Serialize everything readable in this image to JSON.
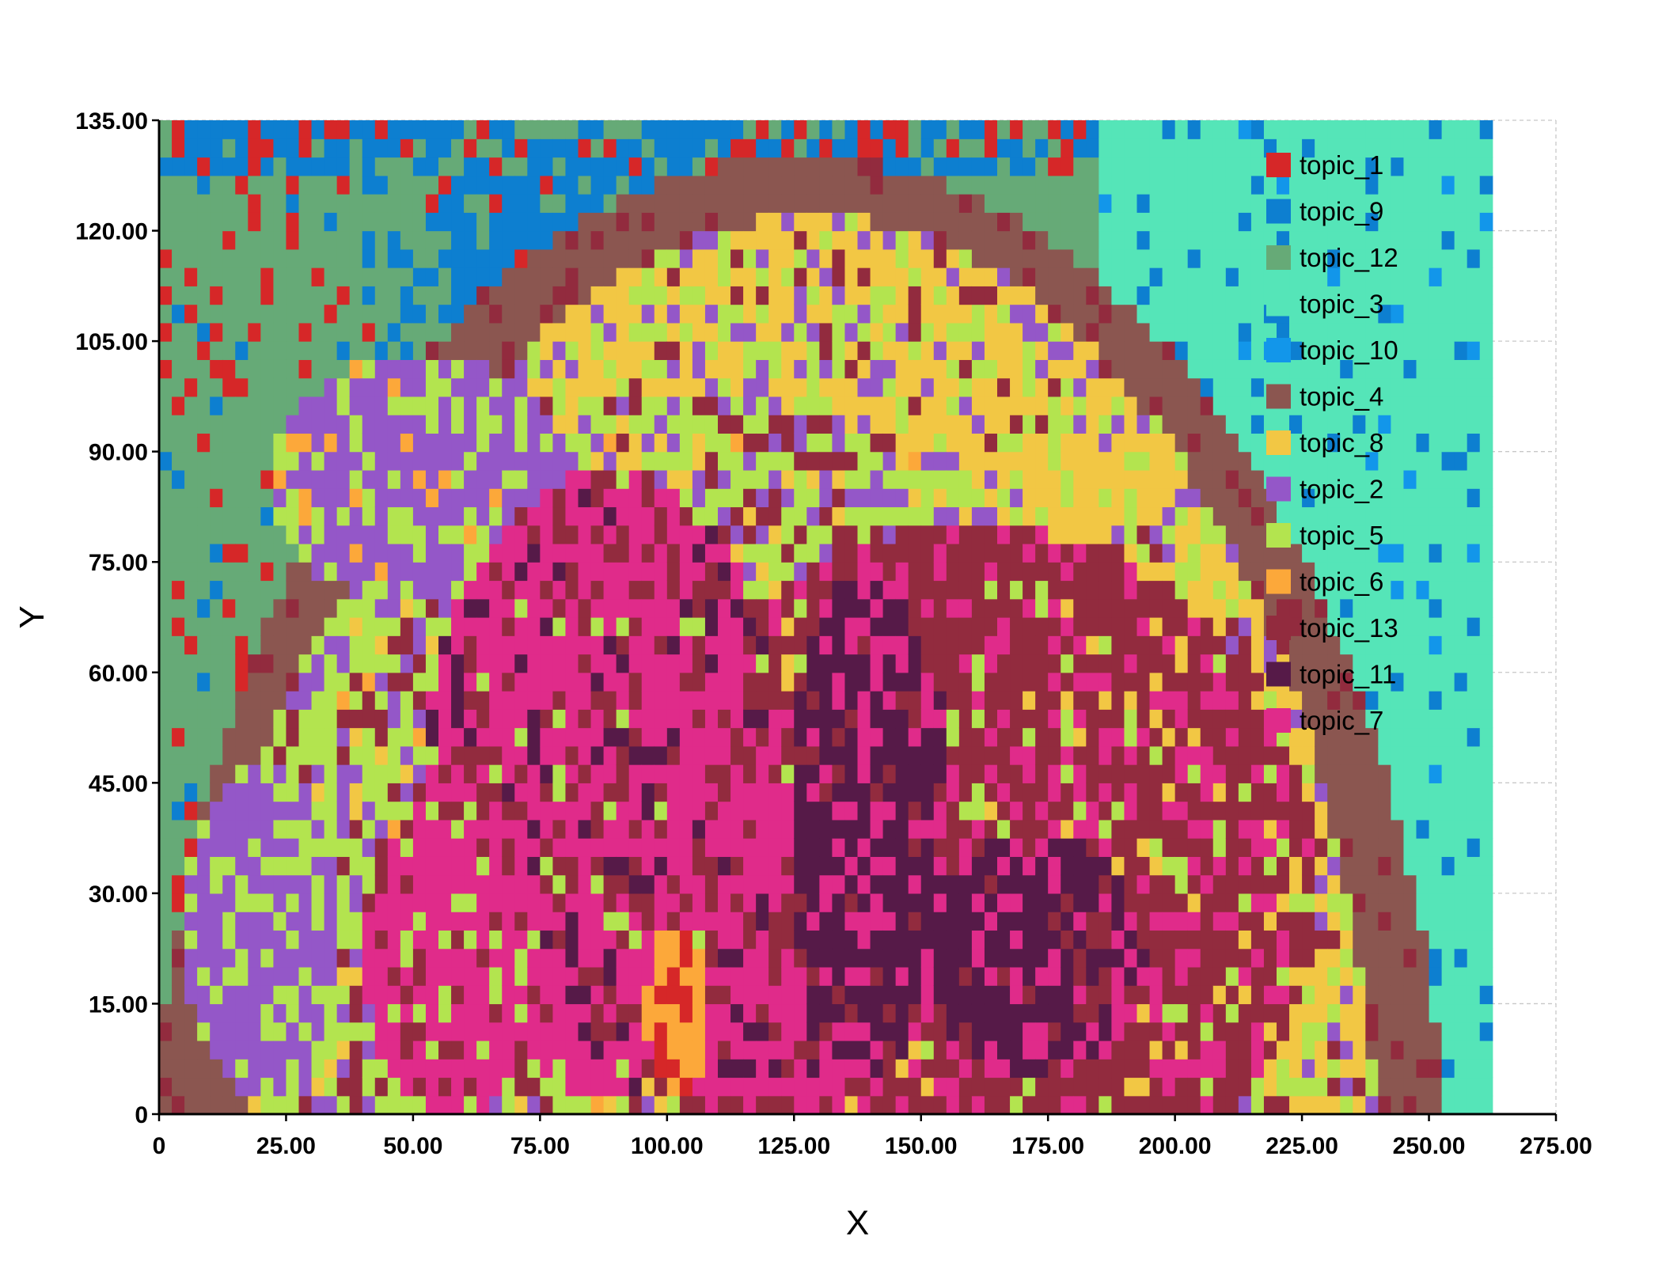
{
  "chart_data": {
    "type": "heatmap",
    "title": "",
    "xlabel": "X",
    "ylabel": "Y",
    "xlim": [
      0,
      275
    ],
    "ylim": [
      0,
      135
    ],
    "grid": true,
    "legend_position": "top-right",
    "cell_size": 2.5,
    "data_extent": {
      "x": [
        0,
        262.5
      ],
      "y": [
        0,
        135
      ]
    },
    "x_ticks": [
      "0",
      "25.00",
      "50.00",
      "75.00",
      "100.00",
      "125.00",
      "150.00",
      "175.00",
      "200.00",
      "225.00",
      "250.00",
      "275.00"
    ],
    "y_ticks": [
      "0",
      "15.00",
      "30.00",
      "45.00",
      "60.00",
      "75.00",
      "90.00",
      "105.00",
      "120.00",
      "135.00"
    ],
    "x_tick_values": [
      0,
      25,
      50,
      75,
      100,
      125,
      150,
      175,
      200,
      225,
      250,
      275
    ],
    "y_tick_values": [
      0,
      15,
      30,
      45,
      60,
      75,
      90,
      105,
      120,
      135
    ],
    "series": [
      {
        "name": "topic_1",
        "color": "#d62728"
      },
      {
        "name": "topic_9",
        "color": "#0d7fd0"
      },
      {
        "name": "topic_12",
        "color": "#66aa77"
      },
      {
        "name": "topic_3",
        "color": "#55e5b8"
      },
      {
        "name": "topic_10",
        "color": "#1296ea"
      },
      {
        "name": "topic_4",
        "color": "#8b5650"
      },
      {
        "name": "topic_8",
        "color": "#f2c744"
      },
      {
        "name": "topic_2",
        "color": "#9457c8"
      },
      {
        "name": "topic_5",
        "color": "#b3e44f"
      },
      {
        "name": "topic_6",
        "color": "#fca83a"
      },
      {
        "name": "topic_13",
        "color": "#922b3e"
      },
      {
        "name": "topic_11",
        "color": "#561a48"
      },
      {
        "name": "topic_7",
        "color": "#e02b8a"
      }
    ],
    "regions": [
      {
        "topic": "topic_12",
        "shape": "rect",
        "x0": 0,
        "x1": 40,
        "y0": 0,
        "y1": 135,
        "noise": [
          [
            "topic_1",
            0.14
          ],
          [
            "topic_9",
            0.04
          ]
        ]
      },
      {
        "topic": "topic_12",
        "shape": "rect",
        "x0": 40,
        "x1": 100,
        "y0": 100,
        "y1": 135,
        "noise": [
          [
            "topic_9",
            0.28
          ],
          [
            "topic_1",
            0.08
          ]
        ]
      },
      {
        "topic": "topic_9",
        "shape": "rect",
        "x0": 58,
        "x1": 125,
        "y0": 100,
        "y1": 135,
        "noise": [
          [
            "topic_12",
            0.22
          ],
          [
            "topic_1",
            0.06
          ]
        ]
      },
      {
        "topic": "topic_9",
        "shape": "rect",
        "x0": 0,
        "x1": 262.5,
        "y0": 128,
        "y1": 135,
        "noise": [
          [
            "topic_1",
            0.22
          ],
          [
            "topic_12",
            0.22
          ]
        ]
      },
      {
        "topic": "topic_3",
        "shape": "rect",
        "x0": 185,
        "x1": 262.5,
        "y0": 0,
        "y1": 135,
        "noise": [
          [
            "topic_9",
            0.1
          ],
          [
            "topic_10",
            0.02
          ]
        ]
      },
      {
        "topic": "topic_4",
        "shape": "ellipse",
        "cx": 126,
        "cy": -18,
        "rx": 128,
        "ry": 148,
        "noise": [
          [
            "topic_13",
            0.12
          ]
        ]
      },
      {
        "topic": "topic_8",
        "shape": "ellipse",
        "cx": 128,
        "cy": -14,
        "rx": 112,
        "ry": 136,
        "noise": [
          [
            "topic_5",
            0.22
          ],
          [
            "topic_2",
            0.14
          ],
          [
            "topic_13",
            0.08
          ]
        ]
      },
      {
        "topic": "topic_5",
        "shape": "ellipse",
        "cx": 110,
        "cy": 25,
        "rx": 95,
        "ry": 72,
        "noise": [
          [
            "topic_2",
            0.25
          ],
          [
            "topic_13",
            0.16
          ],
          [
            "topic_8",
            0.12
          ],
          [
            "topic_6",
            0.03
          ]
        ]
      },
      {
        "topic": "topic_2",
        "shape": "ellipse",
        "cx": 52,
        "cy": 86,
        "rx": 30,
        "ry": 17,
        "noise": [
          [
            "topic_5",
            0.3
          ],
          [
            "topic_6",
            0.06
          ]
        ]
      },
      {
        "topic": "topic_2",
        "shape": "ellipse",
        "cx": 20,
        "cy": 25,
        "rx": 16,
        "ry": 22,
        "noise": [
          [
            "topic_5",
            0.35
          ]
        ]
      },
      {
        "topic": "topic_13",
        "shape": "ellipse",
        "cx": 160,
        "cy": 32,
        "rx": 68,
        "ry": 48,
        "noise": [
          [
            "topic_7",
            0.2
          ],
          [
            "topic_8",
            0.08
          ],
          [
            "topic_5",
            0.06
          ]
        ]
      },
      {
        "topic": "topic_7",
        "shape": "ellipse",
        "cx": 88,
        "cy": 45,
        "rx": 36,
        "ry": 42,
        "noise": [
          [
            "topic_13",
            0.25
          ],
          [
            "topic_11",
            0.12
          ],
          [
            "topic_5",
            0.06
          ]
        ]
      },
      {
        "topic": "topic_7",
        "shape": "ellipse",
        "cx": 58,
        "cy": 22,
        "rx": 18,
        "ry": 22,
        "noise": [
          [
            "topic_13",
            0.2
          ],
          [
            "topic_5",
            0.1
          ]
        ]
      },
      {
        "topic": "topic_7",
        "shape": "ellipse",
        "cx": 118,
        "cy": 10,
        "rx": 20,
        "ry": 12,
        "noise": [
          [
            "topic_13",
            0.2
          ],
          [
            "topic_11",
            0.15
          ]
        ]
      },
      {
        "topic": "topic_11",
        "shape": "ellipse",
        "cx": 140,
        "cy": 40,
        "rx": 16,
        "ry": 34,
        "noise": [
          [
            "topic_7",
            0.25
          ],
          [
            "topic_13",
            0.15
          ]
        ]
      },
      {
        "topic": "topic_11",
        "shape": "ellipse",
        "cx": 172,
        "cy": 22,
        "rx": 22,
        "ry": 16,
        "noise": [
          [
            "topic_7",
            0.22
          ],
          [
            "topic_13",
            0.12
          ]
        ]
      },
      {
        "topic": "topic_6",
        "shape": "ellipse",
        "cx": 102,
        "cy": 14,
        "rx": 6,
        "ry": 12,
        "noise": [
          [
            "topic_1",
            0.35
          ]
        ]
      }
    ]
  }
}
